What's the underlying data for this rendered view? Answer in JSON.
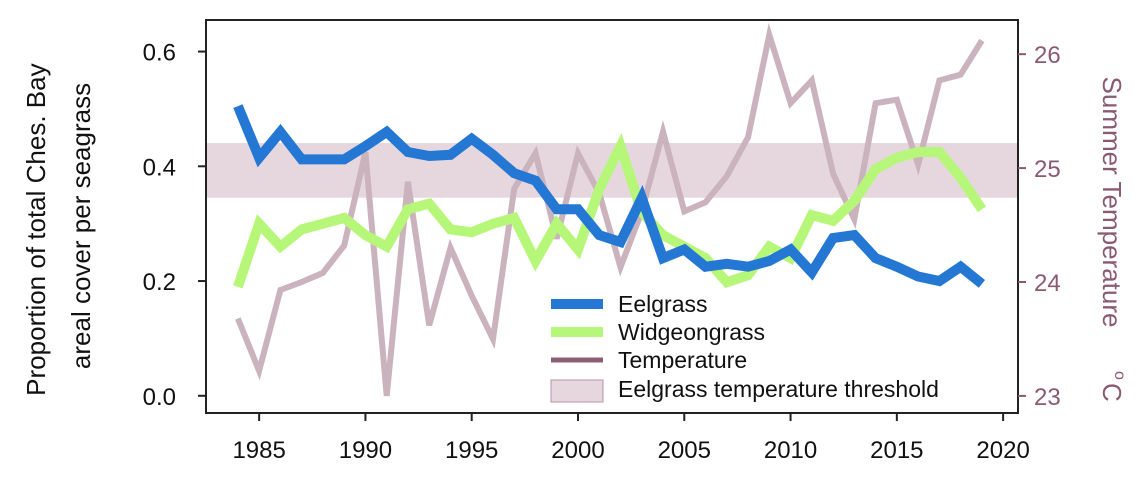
{
  "chart_data": {
    "type": "line",
    "x": [
      1984,
      1985,
      1986,
      1987,
      1988,
      1989,
      1990,
      1991,
      1992,
      1993,
      1994,
      1995,
      1996,
      1997,
      1998,
      1999,
      2000,
      2001,
      2002,
      2003,
      2004,
      2005,
      2006,
      2007,
      2008,
      2009,
      2010,
      2011,
      2012,
      2013,
      2014,
      2015,
      2016,
      2017,
      2018,
      2019
    ],
    "xlim": [
      1982.5,
      2020.7
    ],
    "xticks": [
      "1985",
      "1990",
      "1995",
      "2000",
      "2005",
      "2010",
      "2015",
      "2020"
    ],
    "ylabel": "Proportion of total Ches. Bay areal cover per seagrass",
    "ylabel_lines": [
      "Proportion of total Ches. Bay",
      "areal cover per seagrass"
    ],
    "ylim": [
      -0.03,
      0.655
    ],
    "yticks": [
      "0.0",
      "0.2",
      "0.4",
      "0.6"
    ],
    "y2label": "Summer Temperature",
    "y2label_unit": "o",
    "y2label_unit_suffix": "C",
    "y2lim": [
      22.85,
      26.3
    ],
    "y2ticks": [
      "23",
      "24",
      "25",
      "26"
    ],
    "threshold": {
      "name": "Eelgrass temperature threshold",
      "from": 24.74,
      "to": 25.22,
      "color": "#e6d7df"
    },
    "series": [
      {
        "name": "Eelgrass",
        "axis": "left",
        "color": "#2478d4",
        "values": [
          0.505,
          0.415,
          0.46,
          0.412,
          0.412,
          0.412,
          0.435,
          0.46,
          0.425,
          0.418,
          0.42,
          0.448,
          0.42,
          0.388,
          0.375,
          0.325,
          0.325,
          0.28,
          0.268,
          0.345,
          0.24,
          0.255,
          0.225,
          0.23,
          0.225,
          0.235,
          0.255,
          0.215,
          0.275,
          0.28,
          0.24,
          0.225,
          0.208,
          0.2,
          0.225,
          0.195
        ]
      },
      {
        "name": "Widgeongrass",
        "axis": "left",
        "color": "#b6f77a",
        "values": [
          0.19,
          0.3,
          0.26,
          0.29,
          0.3,
          0.31,
          0.28,
          0.26,
          0.325,
          0.335,
          0.29,
          0.285,
          0.3,
          0.31,
          0.235,
          0.3,
          0.255,
          0.36,
          0.435,
          0.32,
          0.28,
          0.26,
          0.24,
          0.198,
          0.21,
          0.26,
          0.24,
          0.315,
          0.305,
          0.34,
          0.395,
          0.415,
          0.425,
          0.425,
          0.38,
          0.325
        ]
      },
      {
        "name": "Temperature",
        "axis": "right",
        "color": "#8e5e73",
        "plot_color": "#cbb3be",
        "values": [
          23.68,
          23.22,
          23.93,
          24.0,
          24.08,
          24.32,
          25.14,
          23.0,
          24.88,
          23.62,
          24.3,
          23.88,
          23.5,
          24.82,
          25.13,
          24.38,
          25.13,
          24.78,
          24.13,
          24.62,
          25.32,
          24.62,
          24.7,
          24.93,
          25.27,
          26.17,
          25.57,
          25.77,
          24.95,
          24.55,
          25.57,
          25.6,
          25.03,
          25.77,
          25.82,
          26.12
        ]
      }
    ],
    "legend": {
      "placement": "lower-center"
    }
  }
}
